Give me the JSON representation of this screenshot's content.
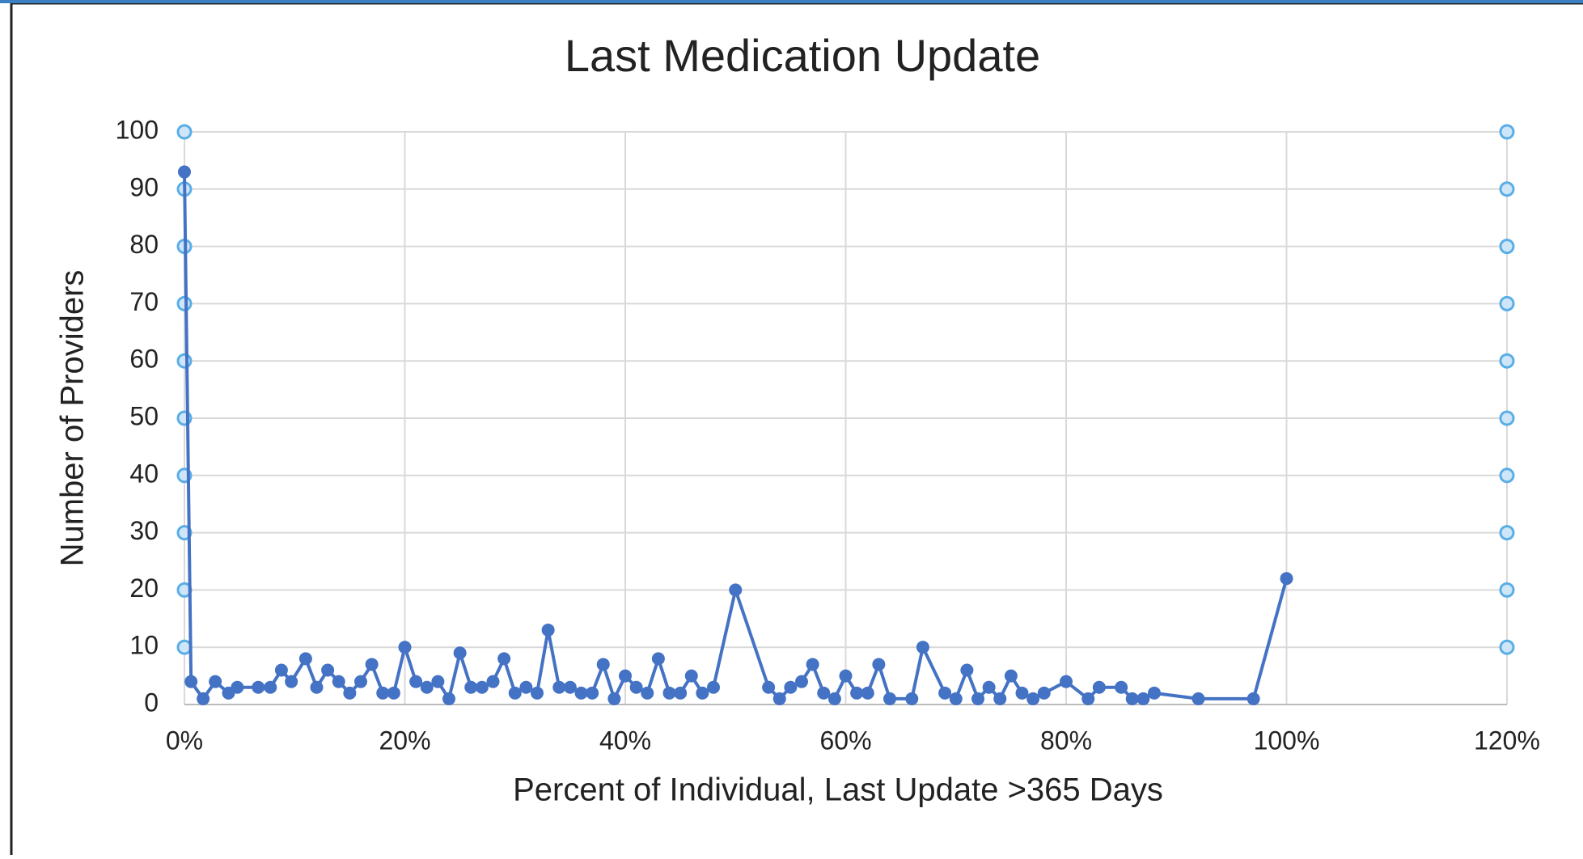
{
  "chart_data": {
    "type": "line",
    "title": "Last Medication Update",
    "x_label": "Percent of Individual, Last Update >365 Days",
    "y_label": "Number of Providers",
    "xlim": [
      0,
      120
    ],
    "ylim": [
      0,
      100
    ],
    "xticks": [
      {
        "value": 0,
        "label": "0%"
      },
      {
        "value": 20,
        "label": "20%"
      },
      {
        "value": 40,
        "label": "40%"
      },
      {
        "value": 60,
        "label": "60%"
      },
      {
        "value": 80,
        "label": "80%"
      },
      {
        "value": 100,
        "label": "100%"
      },
      {
        "value": 120,
        "label": "120%"
      }
    ],
    "yticks": [
      0,
      10,
      20,
      30,
      40,
      50,
      60,
      70,
      80,
      90,
      100
    ],
    "grid": true,
    "series": [
      {
        "color": "#4472c4",
        "show_line": true,
        "x": [
          0,
          0.6,
          1.7,
          2.8,
          4,
          4.8,
          6.7,
          7.8,
          8.8,
          9.7,
          11,
          12,
          13,
          14,
          15,
          16,
          17,
          18,
          19,
          20,
          21,
          22,
          23,
          24,
          25,
          26,
          27,
          28,
          29,
          30,
          31,
          32,
          33,
          34,
          35,
          36,
          37,
          38,
          39,
          40,
          41,
          42,
          43,
          44,
          45,
          46,
          47,
          48,
          50,
          53,
          54,
          55,
          56,
          57,
          58,
          59,
          60,
          61,
          62,
          63,
          64,
          66,
          67,
          69,
          70,
          71,
          72,
          73,
          74,
          75,
          76,
          77,
          78,
          80,
          82,
          83,
          85,
          86,
          87,
          88,
          92,
          97,
          100
        ],
        "values": [
          93,
          4,
          1,
          4,
          2,
          3,
          3,
          3,
          6,
          4,
          8,
          3,
          6,
          4,
          2,
          4,
          7,
          2,
          2,
          10,
          4,
          3,
          4,
          1,
          9,
          3,
          3,
          4,
          8,
          2,
          3,
          2,
          13,
          3,
          3,
          2,
          2,
          7,
          1,
          5,
          3,
          2,
          8,
          2,
          2,
          5,
          2,
          3,
          20,
          3,
          1,
          3,
          4,
          7,
          2,
          1,
          5,
          2,
          2,
          7,
          1,
          1,
          10,
          2,
          1,
          6,
          1,
          3,
          1,
          5,
          2,
          1,
          2,
          4,
          1,
          3,
          3,
          1,
          1,
          2,
          1,
          1,
          22
        ]
      },
      {
        "color": "#5aaee6",
        "show_line": false,
        "x": [
          0,
          0,
          0,
          0,
          0,
          0,
          0,
          0,
          0,
          0,
          120,
          120,
          120,
          120,
          120,
          120,
          120,
          120,
          120,
          120
        ],
        "values": [
          10,
          20,
          30,
          40,
          50,
          60,
          70,
          80,
          90,
          100,
          10,
          20,
          30,
          40,
          50,
          60,
          70,
          80,
          90,
          100
        ]
      }
    ]
  }
}
